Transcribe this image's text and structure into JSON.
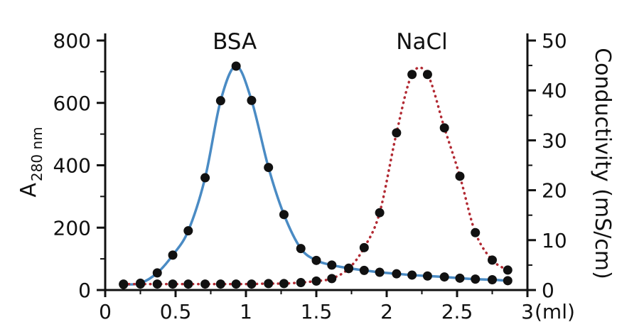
{
  "chart_data": {
    "type": "line",
    "x_unit_label": "(ml)",
    "xlim": [
      0,
      3
    ],
    "x_ticks": [
      "0",
      "0.5",
      "1",
      "1.5",
      "2",
      "2.5",
      "3"
    ],
    "y_left": {
      "label_main": "A",
      "label_sub": "280 nm",
      "lim": [
        0,
        800
      ],
      "ticks": [
        "0",
        "200",
        "400",
        "600",
        "800"
      ]
    },
    "y_right": {
      "label": "Conductivity (mS/cm)",
      "lim": [
        0,
        50
      ],
      "ticks": [
        "0",
        "10",
        "20",
        "30",
        "40",
        "50"
      ]
    },
    "annotations": [
      {
        "text": "BSA",
        "x": 0.92,
        "y_left": 800
      },
      {
        "text": "NaCl",
        "x": 2.25,
        "y_left": 800
      }
    ],
    "series": [
      {
        "axis": "left",
        "color": "#4a8bc4",
        "style": "solid",
        "points": [
          [
            0.13,
            18
          ],
          [
            0.25,
            22
          ],
          [
            0.37,
            55
          ],
          [
            0.48,
            112
          ],
          [
            0.59,
            190
          ],
          [
            0.71,
            360
          ],
          [
            0.82,
            607
          ],
          [
            0.93,
            718
          ],
          [
            1.04,
            608
          ],
          [
            1.16,
            393
          ],
          [
            1.27,
            242
          ],
          [
            1.39,
            133
          ],
          [
            1.5,
            95
          ],
          [
            1.61,
            80
          ],
          [
            1.73,
            70
          ],
          [
            1.84,
            63
          ],
          [
            1.95,
            57
          ],
          [
            2.07,
            52
          ],
          [
            2.18,
            48
          ],
          [
            2.29,
            45
          ],
          [
            2.41,
            42
          ],
          [
            2.52,
            38
          ],
          [
            2.63,
            35
          ],
          [
            2.75,
            33
          ],
          [
            2.86,
            30
          ]
        ]
      },
      {
        "axis": "right",
        "color": "#b22a33",
        "style": "dotted",
        "points": [
          [
            0.13,
            1.2
          ],
          [
            0.25,
            1.2
          ],
          [
            0.37,
            1.2
          ],
          [
            0.48,
            1.2
          ],
          [
            0.59,
            1.2
          ],
          [
            0.71,
            1.2
          ],
          [
            0.82,
            1.2
          ],
          [
            0.93,
            1.2
          ],
          [
            1.04,
            1.2
          ],
          [
            1.16,
            1.3
          ],
          [
            1.27,
            1.3
          ],
          [
            1.39,
            1.5
          ],
          [
            1.5,
            1.8
          ],
          [
            1.61,
            2.3
          ],
          [
            1.73,
            4.3
          ],
          [
            1.84,
            8.5
          ],
          [
            1.95,
            15.5
          ],
          [
            2.07,
            31.5
          ],
          [
            2.18,
            43.2
          ],
          [
            2.29,
            43.2
          ],
          [
            2.41,
            32.5
          ],
          [
            2.52,
            22.8
          ],
          [
            2.63,
            11.5
          ],
          [
            2.75,
            6
          ],
          [
            2.86,
            4
          ]
        ]
      }
    ]
  }
}
